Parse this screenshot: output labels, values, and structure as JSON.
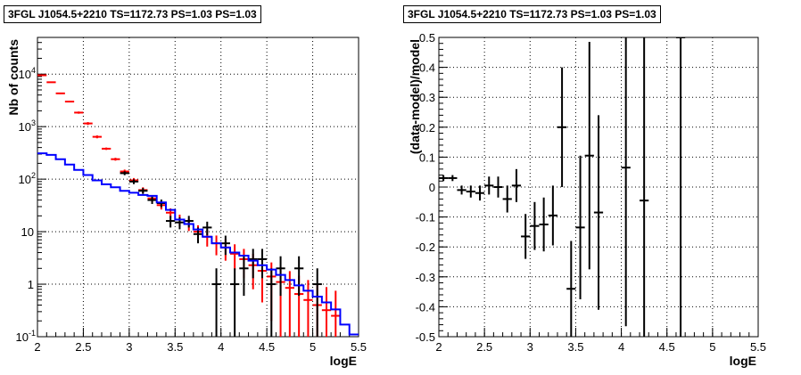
{
  "chart_data": [
    {
      "type": "scatter",
      "title": "3FGL J1054.5+2210 TS=1172.73 PS=1.03 PS=1.03",
      "xlabel": "logE",
      "ylabel": "Nb of counts",
      "xlim": [
        2,
        5.5
      ],
      "ylim": [
        0.1,
        50000
      ],
      "y_log": true,
      "grid": true,
      "x_ticks": [
        "2",
        "2.5",
        "3",
        "3.5",
        "4",
        "4.5",
        "5",
        "5.5"
      ],
      "y_ticks": [
        {
          "value": 0.1,
          "label": "10",
          "exp": "-1"
        },
        {
          "value": 1,
          "label": "1",
          "exp": ""
        },
        {
          "value": 10,
          "label": "10",
          "exp": ""
        },
        {
          "value": 100,
          "label": "10",
          "exp": "2"
        },
        {
          "value": 1000,
          "label": "10",
          "exp": "3"
        },
        {
          "value": 10000,
          "label": "10",
          "exp": "4"
        }
      ],
      "series": [
        {
          "color": "#ff0000",
          "style": "errorbar",
          "points": [
            {
              "x": 2.05,
              "y": 9500,
              "err": 200
            },
            {
              "x": 2.15,
              "y": 7000,
              "err": 170
            },
            {
              "x": 2.25,
              "y": 4300,
              "err": 130
            },
            {
              "x": 2.35,
              "y": 3000,
              "err": 110
            },
            {
              "x": 2.45,
              "y": 1850,
              "err": 90
            },
            {
              "x": 2.55,
              "y": 1150,
              "err": 70
            },
            {
              "x": 2.65,
              "y": 640,
              "err": 40
            },
            {
              "x": 2.75,
              "y": 380,
              "err": 20
            },
            {
              "x": 2.85,
              "y": 240,
              "err": 15
            },
            {
              "x": 2.95,
              "y": 140,
              "err": 12
            },
            {
              "x": 3.05,
              "y": 95,
              "err": 10
            },
            {
              "x": 3.15,
              "y": 62,
              "err": 8
            },
            {
              "x": 3.25,
              "y": 43,
              "err": 6.5
            },
            {
              "x": 3.35,
              "y": 32,
              "err": 5.6
            },
            {
              "x": 3.45,
              "y": 23,
              "err": 4.8
            },
            {
              "x": 3.55,
              "y": 17,
              "err": 4.1
            },
            {
              "x": 3.65,
              "y": 14,
              "err": 3.7
            },
            {
              "x": 3.75,
              "y": 10,
              "err": 3.2
            },
            {
              "x": 3.85,
              "y": 8,
              "err": 2.8
            },
            {
              "x": 3.95,
              "y": 6,
              "err": 2.45
            },
            {
              "x": 4.05,
              "y": 5,
              "err": 2.2
            },
            {
              "x": 4.15,
              "y": 3.8,
              "err": 1.95
            },
            {
              "x": 4.25,
              "y": 3,
              "err": 1.7
            },
            {
              "x": 4.35,
              "y": 2.3,
              "err": 1.5
            },
            {
              "x": 4.45,
              "y": 1.8,
              "err": 1.35
            },
            {
              "x": 4.55,
              "y": 1.4,
              "err": 1.2
            },
            {
              "x": 4.65,
              "y": 1.1,
              "err": 1.05
            },
            {
              "x": 4.75,
              "y": 0.85,
              "err": 0.92
            },
            {
              "x": 4.85,
              "y": 0.65,
              "err": 0.8
            },
            {
              "x": 4.95,
              "y": 0.5,
              "err": 0.7
            },
            {
              "x": 5.05,
              "y": 0.4,
              "err": 0.63
            },
            {
              "x": 5.15,
              "y": 0.32,
              "err": 0.56
            },
            {
              "x": 5.25,
              "y": 0.25,
              "err": 0.5
            }
          ]
        },
        {
          "color": "#000000",
          "style": "errorbar",
          "points": [
            {
              "x": 2.95,
              "y": 130,
              "err": 11
            },
            {
              "x": 3.05,
              "y": 90,
              "err": 9.5
            },
            {
              "x": 3.15,
              "y": 60,
              "err": 7.7
            },
            {
              "x": 3.25,
              "y": 40,
              "err": 6.3
            },
            {
              "x": 3.35,
              "y": 35,
              "err": 5.9
            },
            {
              "x": 3.45,
              "y": 16,
              "err": 4
            },
            {
              "x": 3.55,
              "y": 15,
              "err": 3.9
            },
            {
              "x": 3.65,
              "y": 16,
              "err": 4
            },
            {
              "x": 3.75,
              "y": 9,
              "err": 3
            },
            {
              "x": 3.85,
              "y": 12,
              "err": 3.5
            },
            {
              "x": 3.95,
              "y": 1,
              "err": 1
            },
            {
              "x": 4.05,
              "y": 6,
              "err": 2.4
            },
            {
              "x": 4.15,
              "y": 1,
              "err": 1
            },
            {
              "x": 4.25,
              "y": 2,
              "err": 1.4
            },
            {
              "x": 4.35,
              "y": 3,
              "err": 1.7
            },
            {
              "x": 4.45,
              "y": 3,
              "err": 1.7
            },
            {
              "x": 4.55,
              "y": 1,
              "err": 1
            },
            {
              "x": 4.65,
              "y": 2,
              "err": 1.4
            },
            {
              "x": 4.85,
              "y": 2,
              "err": 1.4
            },
            {
              "x": 5.05,
              "y": 1,
              "err": 1
            }
          ]
        },
        {
          "color": "#0000ff",
          "style": "step",
          "bins": [
            2.0,
            2.1,
            2.2,
            2.3,
            2.4,
            2.5,
            2.6,
            2.7,
            2.8,
            2.9,
            3.0,
            3.1,
            3.2,
            3.3,
            3.4,
            3.5,
            3.6,
            3.7,
            3.8,
            3.9,
            4.0,
            4.1,
            4.2,
            4.3,
            4.4,
            4.5,
            4.6,
            4.7,
            4.8,
            4.9,
            5.0,
            5.1,
            5.2,
            5.3,
            5.4,
            5.5
          ],
          "values": [
            310,
            290,
            240,
            190,
            150,
            120,
            95,
            80,
            70,
            60,
            55,
            50,
            48,
            36,
            26,
            17,
            14,
            11,
            8,
            6,
            5,
            4,
            3.5,
            2.8,
            2.3,
            1.9,
            1.5,
            1.2,
            0.95,
            0.75,
            0.58,
            0.45,
            0.33,
            0.17,
            0.11
          ]
        }
      ]
    },
    {
      "type": "scatter",
      "title": "3FGL J1054.5+2210 TS=1172.73 PS=1.03 PS=1.03",
      "xlabel": "logE",
      "ylabel": "(data-model)/model",
      "xlim": [
        2,
        5.5
      ],
      "ylim": [
        -0.5,
        0.5
      ],
      "y_log": false,
      "grid": true,
      "x_ticks": [
        "2",
        "2.5",
        "3",
        "3.5",
        "4",
        "4.5",
        "5",
        "5.5"
      ],
      "y_ticks": [
        "-0.5",
        "-0.4",
        "-0.3",
        "-0.2",
        "-0.1",
        "0",
        "0.1",
        "0.2",
        "0.3",
        "0.4",
        "0.5"
      ],
      "series": [
        {
          "color": "#000000",
          "style": "errorbar",
          "points": [
            {
              "x": 2.05,
              "y": 0.03,
              "err": 0.01
            },
            {
              "x": 2.15,
              "y": 0.03,
              "err": 0.01
            },
            {
              "x": 2.25,
              "y": -0.01,
              "err": 0.015
            },
            {
              "x": 2.35,
              "y": -0.015,
              "err": 0.02
            },
            {
              "x": 2.45,
              "y": -0.02,
              "err": 0.025
            },
            {
              "x": 2.55,
              "y": 0.005,
              "err": 0.03
            },
            {
              "x": 2.65,
              "y": 0.0,
              "err": 0.035
            },
            {
              "x": 2.75,
              "y": -0.04,
              "err": 0.045
            },
            {
              "x": 2.85,
              "y": 0.005,
              "err": 0.055
            },
            {
              "x": 2.95,
              "y": -0.165,
              "err": 0.075
            },
            {
              "x": 3.05,
              "y": -0.13,
              "err": 0.08
            },
            {
              "x": 3.15,
              "y": -0.125,
              "err": 0.09
            },
            {
              "x": 3.25,
              "y": -0.095,
              "err": 0.1
            },
            {
              "x": 3.35,
              "y": 0.2,
              "err": 0.2
            },
            {
              "x": 3.45,
              "y": -0.34,
              "err": 0.16
            },
            {
              "x": 3.55,
              "y": -0.135,
              "err": 0.24
            },
            {
              "x": 3.65,
              "y": 0.105,
              "err": 0.38
            },
            {
              "x": 3.75,
              "y": -0.085,
              "err": 0.325
            },
            {
              "x": 4.05,
              "y": 0.065,
              "err": 0.53
            },
            {
              "x": 4.25,
              "y": -0.045,
              "err": 0.6
            },
            {
              "x": 4.65,
              "y": 0.5,
              "err": 1.0
            }
          ]
        }
      ]
    }
  ]
}
